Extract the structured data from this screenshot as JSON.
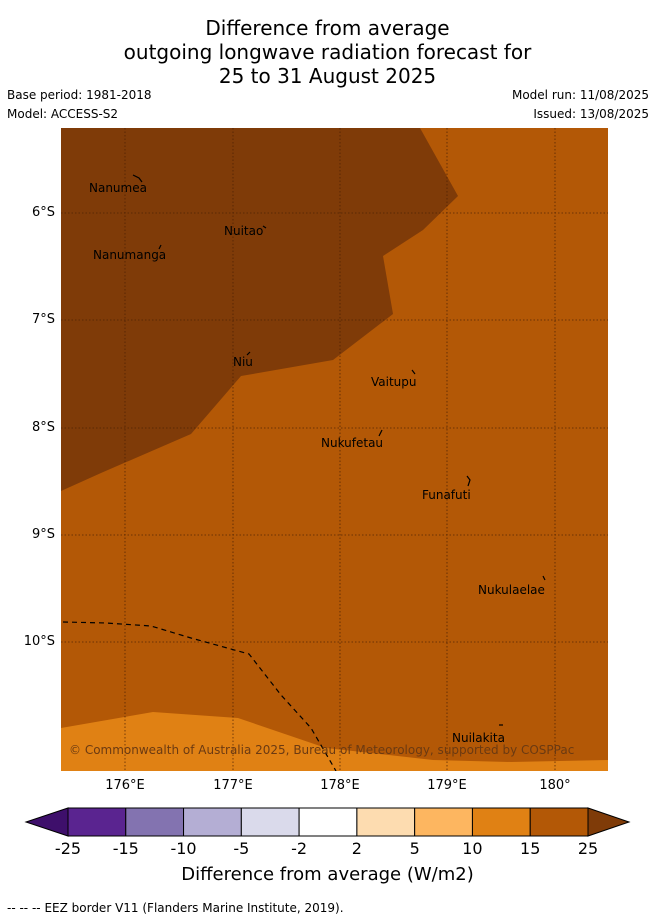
{
  "title": {
    "line1": "Difference from average",
    "line2": "outgoing longwave radiation forecast for",
    "line3": "25 to 31 August 2025"
  },
  "meta": {
    "base_period": "Base period: 1981-2018",
    "model": "Model: ACCESS-S2",
    "model_run": "Model run: 11/08/2025",
    "issued": "Issued: 13/08/2025"
  },
  "places": [
    "Nanumea",
    "Nuitao",
    "Nanumanga",
    "Niu",
    "Vaitupu",
    "Nukufetau",
    "Funafuti",
    "Nukulaelae",
    "Nuilakita"
  ],
  "copyright": "© Commonwealth of Australia 2025, Bureau of Meteorology, supported by COSPPac",
  "lat_ticks": [
    "6°S",
    "7°S",
    "8°S",
    "9°S",
    "10°S"
  ],
  "lon_ticks": [
    "176°E",
    "177°E",
    "178°E",
    "179°E",
    "180°"
  ],
  "colorbar": {
    "labels": [
      "-25",
      "-15",
      "-10",
      "-5",
      "-2",
      "2",
      "5",
      "10",
      "15",
      "25"
    ],
    "colors": [
      "#3e0f6b",
      "#5a2490",
      "#8373b0",
      "#b4aed4",
      "#dadaeb",
      "#ffffff",
      "#fddcb0",
      "#fdb660",
      "#e08114",
      "#b35806",
      "#7f3b08"
    ],
    "title": "Difference from average (W/m2)"
  },
  "legend": {
    "symbol": "-- -- --",
    "text": "EEZ border V11 (Flanders Marine Institute, 2019)."
  },
  "map_colors": {
    "deep": "#7f3b08",
    "mid": "#b35806",
    "light": "#e08114"
  }
}
